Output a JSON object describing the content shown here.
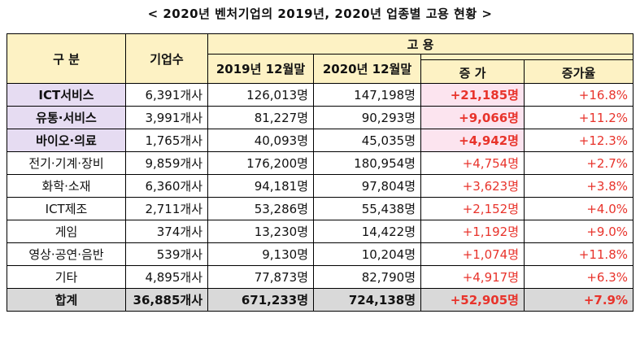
{
  "title": "< 2020년 벤처기업의 2019년, 2020년 업종별 고용 현황 >",
  "headers": {
    "category": "구  분",
    "companies": "기업수",
    "employment": "고   용",
    "y2019": "2019년  12월말",
    "y2020": "2020년  12월말",
    "increase": "증  가",
    "rate": "증가율"
  },
  "rows": [
    {
      "category": "ICT서비스",
      "companies": "6,391개사",
      "y2019": "126,013명",
      "y2020": "147,198명",
      "increase": "+21,185명",
      "rate": "+16.8%"
    },
    {
      "category": "유통·서비스",
      "companies": "3,991개사",
      "y2019": "81,227명",
      "y2020": "90,293명",
      "increase": "+9,066명",
      "rate": "+11.2%"
    },
    {
      "category": "바이오·의료",
      "companies": "1,765개사",
      "y2019": "40,093명",
      "y2020": "45,035명",
      "increase": "+4,942명",
      "rate": "+12.3%"
    },
    {
      "category": "전기·기계·장비",
      "companies": "9,859개사",
      "y2019": "176,200명",
      "y2020": "180,954명",
      "increase": "+4,754명",
      "rate": "+2.7%"
    },
    {
      "category": "화학·소재",
      "companies": "6,360개사",
      "y2019": "94,181명",
      "y2020": "97,804명",
      "increase": "+3,623명",
      "rate": "+3.8%"
    },
    {
      "category": "ICT제조",
      "companies": "2,711개사",
      "y2019": "53,286명",
      "y2020": "55,438명",
      "increase": "+2,152명",
      "rate": "+4.0%"
    },
    {
      "category": "게임",
      "companies": "374개사",
      "y2019": "13,230명",
      "y2020": "14,422명",
      "increase": "+1,192명",
      "rate": "+9.0%"
    },
    {
      "category": "영상·공연·음반",
      "companies": "539개사",
      "y2019": "9,130명",
      "y2020": "10,204명",
      "increase": "+1,074명",
      "rate": "+11.8%"
    },
    {
      "category": "기타",
      "companies": "4,895개사",
      "y2019": "77,873명",
      "y2020": "82,790명",
      "increase": "+4,917명",
      "rate": "+6.3%"
    }
  ],
  "total": {
    "category": "합계",
    "companies": "36,885개사",
    "y2019": "671,233명",
    "y2020": "724,138명",
    "increase": "+52,905명",
    "rate": "+7.9%"
  },
  "colors": {
    "header_bg": "#fdf2c4",
    "highlight_category_bg": "#e6dcf2",
    "highlight_increase_bg": "#fce4ef",
    "increase_text": "#e8332b",
    "total_bg": "#d9d9d9"
  }
}
